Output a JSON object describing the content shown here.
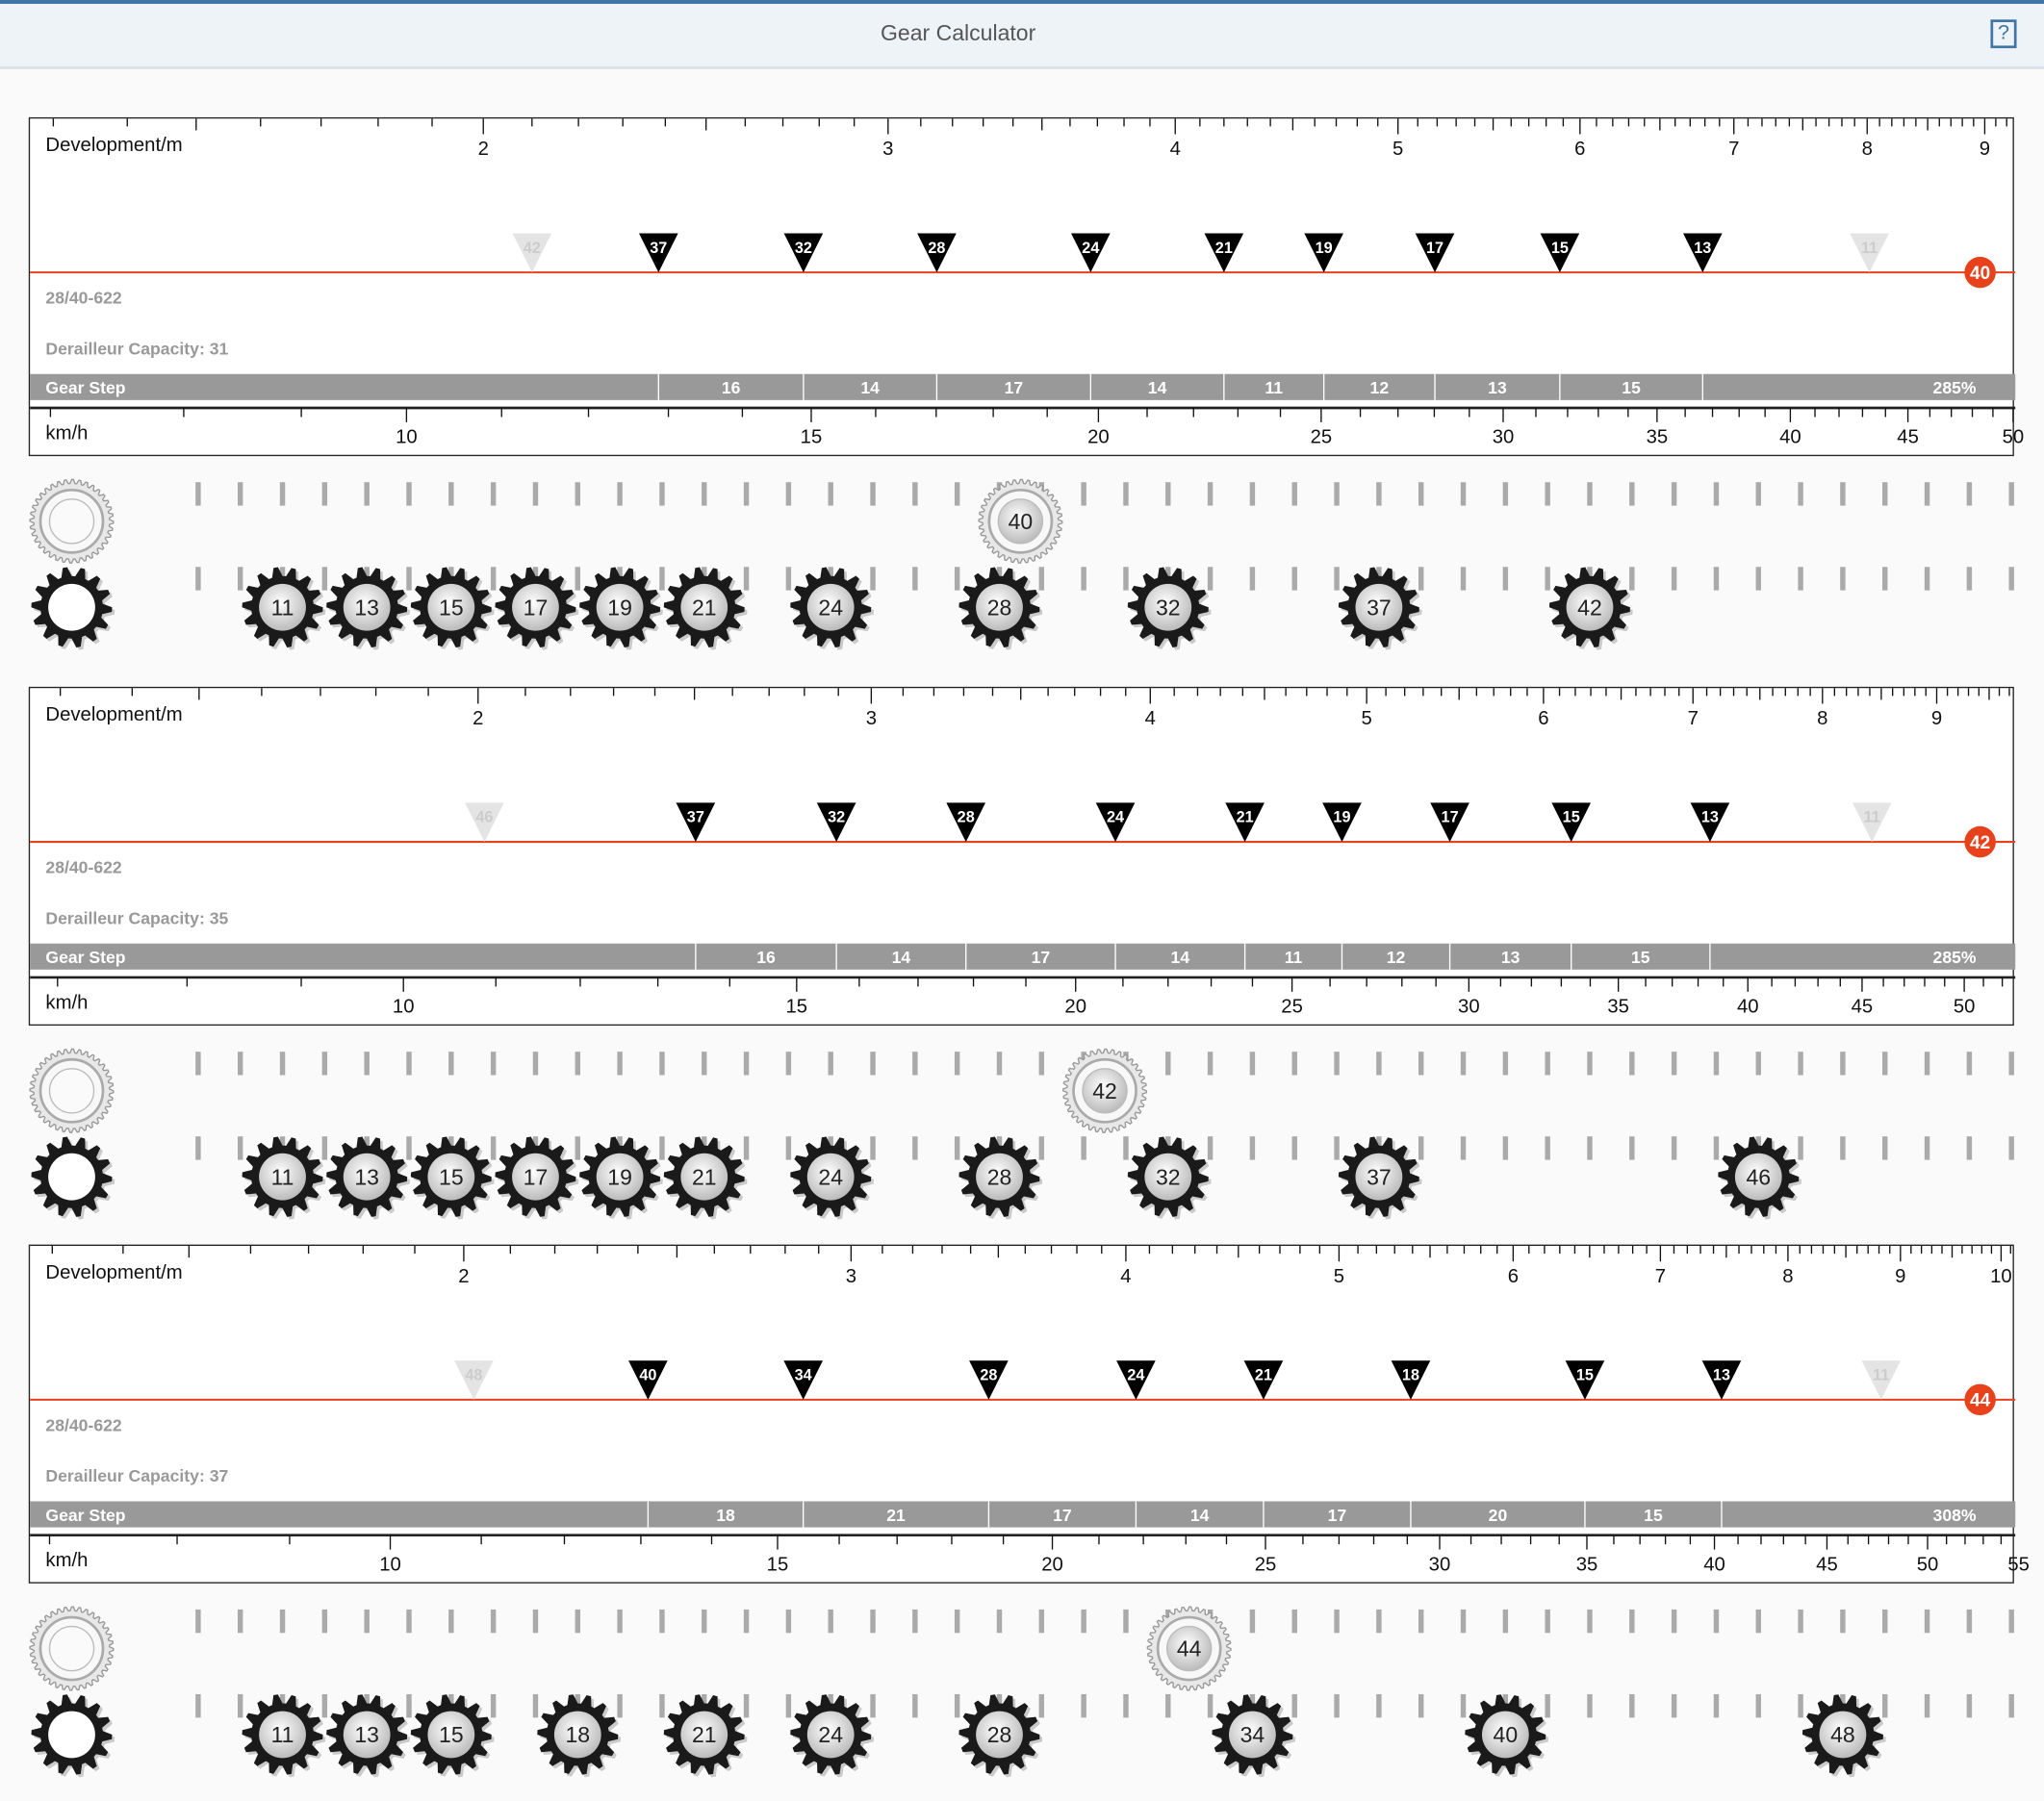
{
  "header": {
    "title": "Gear Calculator",
    "help_label": "?"
  },
  "colors": {
    "accent": "#3f76a6",
    "chainline": "#e8421c",
    "gear_step_bar": "#999999",
    "marker": "#000000",
    "marker_faded": "#e4e4e4"
  },
  "chart_data": [
    {
      "type": "gear-ruler",
      "development_label": "Development/m",
      "speed_label": "km/h",
      "scale": "log",
      "development_ticks": [
        "2",
        "3",
        "4",
        "5",
        "6",
        "7",
        "8",
        "9"
      ],
      "speed_ticks": [
        "10",
        "15",
        "20",
        "25",
        "30",
        "35",
        "40",
        "45",
        "50"
      ],
      "development_range": [
        1.27,
        9.28
      ],
      "tire": "28/40-622",
      "derailleur_capacity": "Derailleur Capacity: 31",
      "gear_step_label": "Gear Step",
      "chainring": 40,
      "faded_cogs": [
        42,
        11
      ],
      "active_cogs": [
        37,
        32,
        28,
        24,
        21,
        19,
        17,
        15,
        13
      ],
      "gear_steps": [
        "16",
        "14",
        "17",
        "14",
        "11",
        "12",
        "13",
        "15"
      ],
      "range": "285%",
      "cassette": [
        11,
        13,
        15,
        17,
        19,
        21,
        24,
        28,
        32,
        37,
        42
      ]
    },
    {
      "type": "gear-ruler",
      "development_label": "Development/m",
      "speed_label": "km/h",
      "scale": "log",
      "development_ticks": [
        "2",
        "3",
        "4",
        "5",
        "6",
        "7",
        "8",
        "9"
      ],
      "speed_ticks": [
        "10",
        "15",
        "20",
        "25",
        "30",
        "35",
        "40",
        "45",
        "50"
      ],
      "development_range": [
        1.26,
        9.76
      ],
      "tire": "28/40-622",
      "derailleur_capacity": "Derailleur Capacity: 35",
      "gear_step_label": "Gear Step",
      "chainring": 42,
      "faded_cogs": [
        46,
        11
      ],
      "active_cogs": [
        37,
        32,
        28,
        24,
        21,
        19,
        17,
        15,
        13
      ],
      "gear_steps": [
        "16",
        "14",
        "17",
        "14",
        "11",
        "12",
        "13",
        "15"
      ],
      "range": "285%",
      "cassette": [
        11,
        13,
        15,
        17,
        19,
        21,
        24,
        28,
        32,
        37,
        46
      ]
    },
    {
      "type": "gear-ruler",
      "development_label": "Development/m",
      "speed_label": "km/h",
      "scale": "log",
      "development_ticks": [
        "2",
        "3",
        "4",
        "5",
        "6",
        "7",
        "8",
        "9",
        "10"
      ],
      "speed_ticks": [
        "10",
        "15",
        "20",
        "25",
        "30",
        "35",
        "40",
        "45",
        "50",
        "55"
      ],
      "development_range": [
        1.27,
        10.15
      ],
      "tire": "28/40-622",
      "derailleur_capacity": "Derailleur Capacity: 37",
      "gear_step_label": "Gear Step",
      "chainring": 44,
      "faded_cogs": [
        48,
        11
      ],
      "active_cogs": [
        40,
        34,
        28,
        24,
        21,
        18,
        15,
        13
      ],
      "gear_steps": [
        "18",
        "21",
        "17",
        "14",
        "17",
        "20",
        "15"
      ],
      "range": "308%",
      "cassette": [
        11,
        13,
        15,
        18,
        21,
        24,
        28,
        34,
        40,
        48
      ]
    }
  ]
}
